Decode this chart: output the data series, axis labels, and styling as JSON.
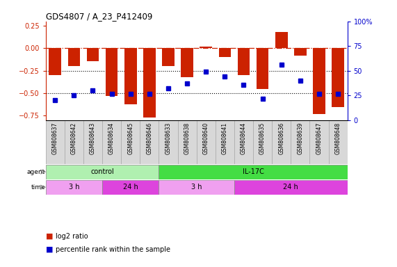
{
  "title": "GDS4807 / A_23_P412409",
  "samples": [
    "GSM808637",
    "GSM808642",
    "GSM808643",
    "GSM808634",
    "GSM808645",
    "GSM808646",
    "GSM808633",
    "GSM808638",
    "GSM808640",
    "GSM808641",
    "GSM808644",
    "GSM808635",
    "GSM808636",
    "GSM808639",
    "GSM808647",
    "GSM808648"
  ],
  "log2_ratio": [
    -0.3,
    -0.2,
    -0.14,
    -0.53,
    -0.62,
    -0.77,
    -0.2,
    -0.32,
    0.02,
    -0.1,
    -0.3,
    -0.45,
    0.18,
    -0.08,
    -0.73,
    -0.65
  ],
  "percentile_rank": [
    20,
    25,
    30,
    27,
    27,
    27,
    32,
    37,
    49,
    44,
    36,
    22,
    56,
    40,
    27,
    27
  ],
  "agent_groups": [
    {
      "label": "control",
      "start": 0,
      "end": 6,
      "color": "#b0f0b0"
    },
    {
      "label": "IL-17C",
      "start": 6,
      "end": 16,
      "color": "#44dd44"
    }
  ],
  "time_groups": [
    {
      "label": "3 h",
      "start": 0,
      "end": 3,
      "color": "#f0a0f0"
    },
    {
      "label": "24 h",
      "start": 3,
      "end": 6,
      "color": "#dd44dd"
    },
    {
      "label": "3 h",
      "start": 6,
      "end": 10,
      "color": "#f0a0f0"
    },
    {
      "label": "24 h",
      "start": 10,
      "end": 16,
      "color": "#dd44dd"
    }
  ],
  "bar_color": "#cc2200",
  "dot_color": "#0000cc",
  "ylim_left": [
    -0.8,
    0.3
  ],
  "ylim_right": [
    0,
    100
  ],
  "yticks_left": [
    -0.75,
    -0.5,
    -0.25,
    0,
    0.25
  ],
  "yticks_right": [
    0,
    25,
    50,
    75,
    100
  ],
  "hlines": [
    -0.5,
    -0.25
  ],
  "zero_line": 0,
  "background_color": "#ffffff",
  "plot_bg": "#ffffff",
  "legend_items": [
    {
      "label": "log2 ratio",
      "color": "#cc2200"
    },
    {
      "label": "percentile rank within the sample",
      "color": "#0000cc"
    }
  ]
}
